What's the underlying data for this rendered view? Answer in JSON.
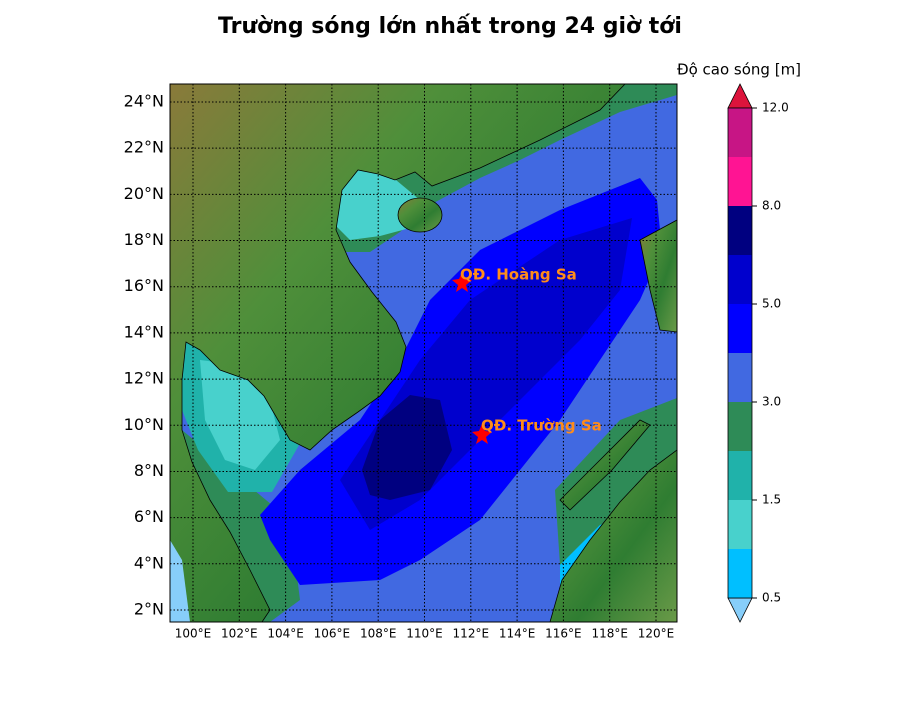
{
  "title": "Trường sóng lớn nhất trong 24 giờ tới",
  "map": {
    "lon_ticks": [
      {
        "value": 100,
        "label": "100°E"
      },
      {
        "value": 102,
        "label": "102°E"
      },
      {
        "value": 104,
        "label": "104°E"
      },
      {
        "value": 106,
        "label": "106°E"
      },
      {
        "value": 108,
        "label": "108°E"
      },
      {
        "value": 110,
        "label": "110°E"
      },
      {
        "value": 112,
        "label": "112°E"
      },
      {
        "value": 114,
        "label": "114°E"
      },
      {
        "value": 116,
        "label": "116°E"
      },
      {
        "value": 118,
        "label": "118°E"
      },
      {
        "value": 120,
        "label": "120°E"
      }
    ],
    "lat_ticks": [
      {
        "value": 2,
        "label": "2°N"
      },
      {
        "value": 4,
        "label": "4°N"
      },
      {
        "value": 6,
        "label": "6°N"
      },
      {
        "value": 8,
        "label": "8°N"
      },
      {
        "value": 10,
        "label": "10°N"
      },
      {
        "value": 12,
        "label": "12°N"
      },
      {
        "value": 14,
        "label": "14°N"
      },
      {
        "value": 16,
        "label": "16°N"
      },
      {
        "value": 18,
        "label": "18°N"
      },
      {
        "value": 20,
        "label": "20°N"
      },
      {
        "value": 22,
        "label": "22°N"
      },
      {
        "value": 24,
        "label": "24°N"
      }
    ],
    "annotations": [
      {
        "label": "QĐ. Hoàng Sa"
      },
      {
        "label": "QĐ. Trường Sa"
      }
    ]
  },
  "colorbar": {
    "label": "Độ cao sóng [m]",
    "ticks": [
      0.5,
      1.5,
      {
        "value": 3,
        "label": "3.0"
      },
      {
        "value": 5,
        "label": "5.0"
      },
      {
        "value": 8,
        "label": "8.0"
      },
      {
        "value": 12,
        "label": "12.0"
      }
    ]
  }
}
